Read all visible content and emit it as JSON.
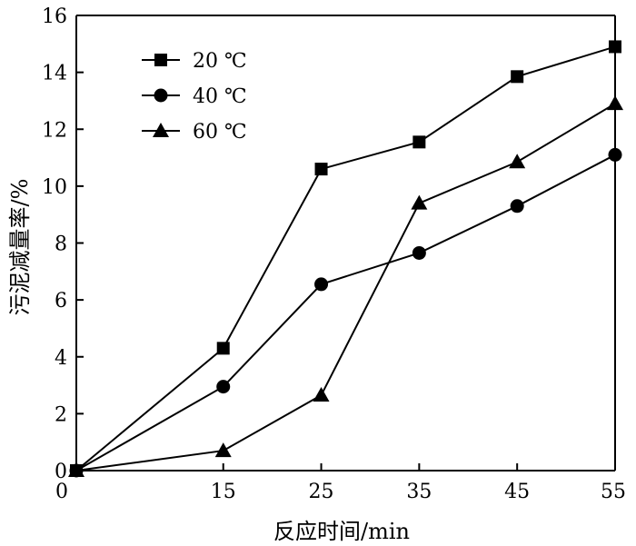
{
  "chart_data": {
    "type": "line",
    "xlabel": "反应时间/min",
    "ylabel": "污泥减量率/%",
    "x": [
      0,
      15,
      25,
      35,
      45,
      55
    ],
    "xlim": [
      0,
      55
    ],
    "ylim": [
      0,
      16
    ],
    "yticks": [
      0,
      2,
      4,
      6,
      8,
      10,
      12,
      14,
      16
    ],
    "xticks": [
      0,
      15,
      25,
      35,
      45,
      55
    ],
    "grid": false,
    "legend_position": "top-left",
    "series": [
      {
        "name": "20 ℃",
        "marker": "square",
        "values": [
          0,
          4.3,
          10.6,
          11.55,
          13.85,
          14.9
        ]
      },
      {
        "name": "40 ℃",
        "marker": "circle",
        "values": [
          0,
          2.95,
          6.55,
          7.65,
          9.3,
          11.1
        ]
      },
      {
        "name": "60 ℃",
        "marker": "triangle",
        "values": [
          0,
          0.7,
          2.65,
          9.4,
          10.85,
          12.9
        ]
      }
    ]
  }
}
